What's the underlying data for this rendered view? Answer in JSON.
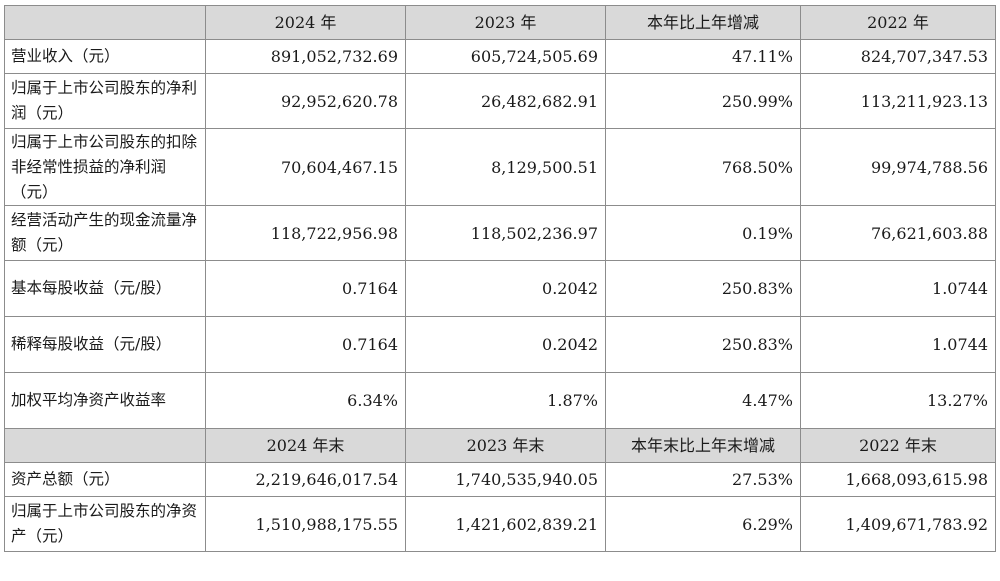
{
  "header_top": [
    "",
    "2024 年",
    "2023 年",
    "本年比上年增减",
    "2022 年"
  ],
  "rows_top": [
    {
      "label": "营业收入（元）",
      "v2024": "891,052,732.69",
      "v2023": "605,724,505.69",
      "change": "47.11%",
      "v2022": "824,707,347.53"
    },
    {
      "label": "归属于上市公司股东的净利润（元）",
      "v2024": "92,952,620.78",
      "v2023": "26,482,682.91",
      "change": "250.99%",
      "v2022": "113,211,923.13"
    },
    {
      "label": "归属于上市公司股东的扣除非经常性损益的净利润（元）",
      "v2024": "70,604,467.15",
      "v2023": "8,129,500.51",
      "change": "768.50%",
      "v2022": "99,974,788.56"
    },
    {
      "label": "经营活动产生的现金流量净额（元）",
      "v2024": "118,722,956.98",
      "v2023": "118,502,236.97",
      "change": "0.19%",
      "v2022": "76,621,603.88"
    },
    {
      "label": "基本每股收益（元/股）",
      "v2024": "0.7164",
      "v2023": "0.2042",
      "change": "250.83%",
      "v2022": "1.0744"
    },
    {
      "label": "稀释每股收益（元/股）",
      "v2024": "0.7164",
      "v2023": "0.2042",
      "change": "250.83%",
      "v2022": "1.0744"
    },
    {
      "label": "加权平均净资产收益率",
      "v2024": "6.34%",
      "v2023": "1.87%",
      "change": "4.47%",
      "v2022": "13.27%"
    }
  ],
  "header_bottom": [
    "",
    "2024 年末",
    "2023 年末",
    "本年末比上年末增减",
    "2022 年末"
  ],
  "rows_bottom": [
    {
      "label": "资产总额（元）",
      "v2024": "2,219,646,017.54",
      "v2023": "1,740,535,940.05",
      "change": "27.53%",
      "v2022": "1,668,093,615.98"
    },
    {
      "label": "归属于上市公司股东的净资产（元）",
      "v2024": "1,510,988,175.55",
      "v2023": "1,421,602,839.21",
      "change": "6.29%",
      "v2022": "1,409,671,783.92"
    }
  ]
}
